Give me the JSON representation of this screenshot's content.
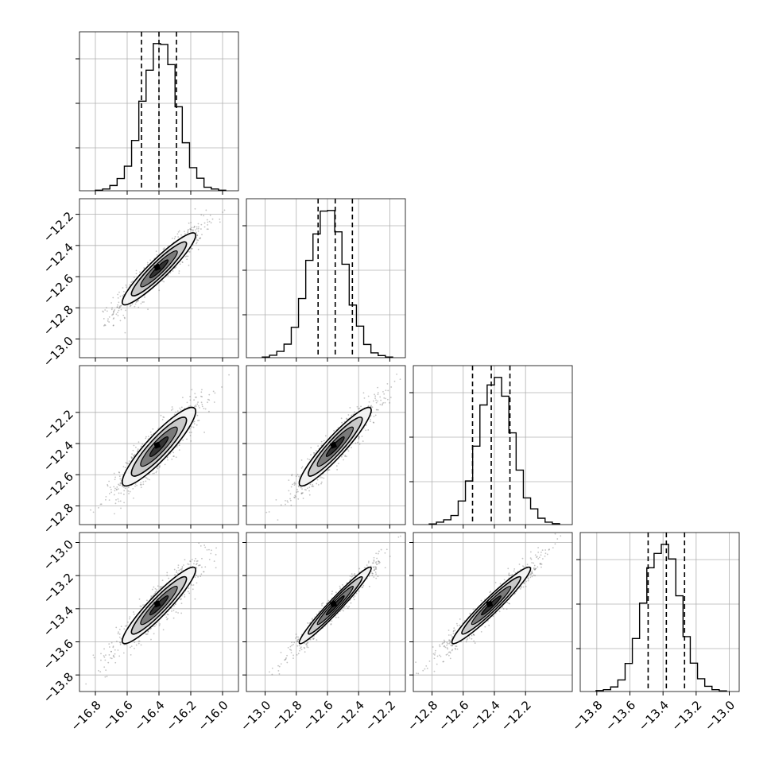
{
  "figure": {
    "type": "corner_plot",
    "n_params": 4
  },
  "chart_data": {
    "type": "corner",
    "grid": true,
    "colors": {
      "hist": "#000000",
      "scatter": "#555555",
      "grid": "#b0b0b0",
      "contour_fill": [
        "#f2f2f2",
        "#c8c8c8",
        "#7a7a7a",
        "#333333",
        "#000000"
      ]
    },
    "params": [
      {
        "range": [
          -16.9,
          -15.9
        ],
        "ticks": [
          -16.8,
          -16.6,
          -16.4,
          -16.2,
          -16.0
        ],
        "tick_labels": [
          "−16.8",
          "−16.6",
          "−16.4",
          "−16.2",
          "−16.0"
        ],
        "quantiles": [
          -16.51,
          -16.4,
          -16.29
        ],
        "hist": [
          0.2,
          0.6,
          1.8,
          4.2,
          8.4,
          17.2,
          30.6,
          41.2,
          50.3,
          50.0,
          43.1,
          28.7,
          16.4,
          7.9,
          4.3,
          1.2,
          0.6,
          0.2
        ],
        "hist_max_tick_count": 3
      },
      {
        "range": [
          -13.12,
          -12.1
        ],
        "ticks": [
          -13.0,
          -12.8,
          -12.6,
          -12.4,
          -12.2
        ],
        "tick_labels": [
          "−13.0",
          "−12.8",
          "−12.6",
          "−12.4",
          "−12.2"
        ],
        "quantiles": [
          -12.66,
          -12.55,
          -12.44
        ],
        "hist": [
          0.2,
          0.8,
          2.1,
          4.5,
          10.1,
          19.7,
          32.4,
          41.2,
          48.8,
          49.0,
          41.9,
          31.1,
          17.5,
          10.5,
          4.4,
          1.6,
          0.7,
          0.2
        ],
        "hist_max_tick_count": 3
      },
      {
        "range": [
          -12.92,
          -11.9
        ],
        "ticks": [
          -12.8,
          -12.6,
          -12.4,
          -12.2
        ],
        "tick_labels": [
          "−12.8",
          "−12.6",
          "−12.4",
          "−12.2"
        ],
        "quantiles": [
          -12.54,
          -12.42,
          -12.3
        ],
        "hist": [
          0.2,
          0.8,
          1.6,
          3.0,
          7.8,
          14.4,
          25.9,
          39.5,
          46.1,
          48.6,
          42.4,
          30.3,
          18.0,
          8.8,
          5.2,
          2.1,
          0.8,
          0.3
        ],
        "hist_max_tick_count": 3
      },
      {
        "range": [
          -13.9,
          -12.94
        ],
        "ticks": [
          -13.8,
          -13.6,
          -13.4,
          -13.2,
          -13.0
        ],
        "tick_labels": [
          "−13.8",
          "−13.6",
          "−13.4",
          "−13.2",
          "−13.0"
        ],
        "quantiles": [
          -13.49,
          -13.38,
          -13.27
        ],
        "hist": [
          0.3,
          0.6,
          1.5,
          3.8,
          9.2,
          17.4,
          29.0,
          40.6,
          45.3,
          48.3,
          43.5,
          31.4,
          18.0,
          9.3,
          4.2,
          1.7,
          0.6,
          0.2
        ],
        "hist_max_tick_count": 3
      }
    ],
    "pairs": [
      {
        "x": 0,
        "y": 1,
        "center": [
          -16.4,
          -12.55
        ],
        "sigma": [
          0.11,
          0.11
        ],
        "corr": 0.93
      },
      {
        "x": 0,
        "y": 2,
        "center": [
          -16.4,
          -12.42
        ],
        "sigma": [
          0.11,
          0.12
        ],
        "corr": 0.9
      },
      {
        "x": 1,
        "y": 2,
        "center": [
          -12.55,
          -12.42
        ],
        "sigma": [
          0.11,
          0.12
        ],
        "corr": 0.93
      },
      {
        "x": 0,
        "y": 3,
        "center": [
          -16.4,
          -13.38
        ],
        "sigma": [
          0.11,
          0.11
        ],
        "corr": 0.93
      },
      {
        "x": 1,
        "y": 3,
        "center": [
          -12.55,
          -13.38
        ],
        "sigma": [
          0.11,
          0.11
        ],
        "corr": 0.97
      },
      {
        "x": 2,
        "y": 3,
        "center": [
          -12.42,
          -13.38
        ],
        "sigma": [
          0.12,
          0.11
        ],
        "corr": 0.96
      }
    ],
    "contour_levels_sigma": [
      0.5,
      1.0,
      1.5,
      2.0
    ]
  }
}
